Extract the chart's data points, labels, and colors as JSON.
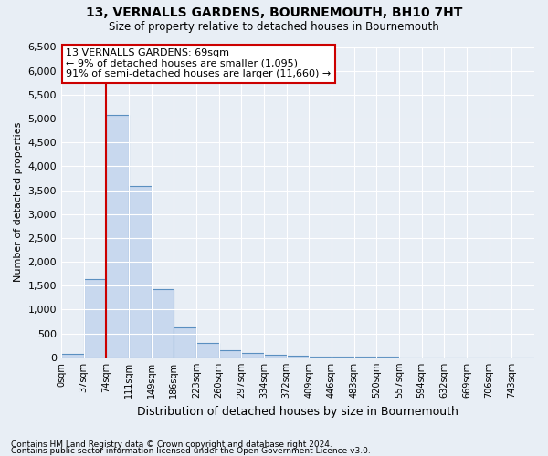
{
  "title": "13, VERNALLS GARDENS, BOURNEMOUTH, BH10 7HT",
  "subtitle": "Size of property relative to detached houses in Bournemouth",
  "xlabel": "Distribution of detached houses by size in Bournemouth",
  "ylabel": "Number of detached properties",
  "bin_labels": [
    "0sqm",
    "37sqm",
    "74sqm",
    "111sqm",
    "149sqm",
    "186sqm",
    "223sqm",
    "260sqm",
    "297sqm",
    "334sqm",
    "372sqm",
    "409sqm",
    "446sqm",
    "483sqm",
    "520sqm",
    "557sqm",
    "594sqm",
    "632sqm",
    "669sqm",
    "706sqm",
    "743sqm"
  ],
  "bar_values": [
    75,
    1630,
    5080,
    3580,
    1420,
    620,
    310,
    150,
    95,
    55,
    35,
    20,
    15,
    10,
    8,
    5,
    4,
    3,
    2,
    2,
    2
  ],
  "bar_color": "#c8d8ee",
  "bar_edge_color": "#5a8fc0",
  "property_sqm": 69,
  "annotation_title": "13 VERNALLS GARDENS: 69sqm",
  "annotation_line1": "← 9% of detached houses are smaller (1,095)",
  "annotation_line2": "91% of semi-detached houses are larger (11,660) →",
  "annotation_box_color": "#ffffff",
  "annotation_box_edge": "#cc0000",
  "vline_color": "#cc0000",
  "ylim": [
    0,
    6500
  ],
  "yticks": [
    0,
    500,
    1000,
    1500,
    2000,
    2500,
    3000,
    3500,
    4000,
    4500,
    5000,
    5500,
    6000,
    6500
  ],
  "footer1": "Contains HM Land Registry data © Crown copyright and database right 2024.",
  "footer2": "Contains public sector information licensed under the Open Government Licence v3.0.",
  "bg_color": "#e8eef5",
  "plot_bg_color": "#e8eef5"
}
